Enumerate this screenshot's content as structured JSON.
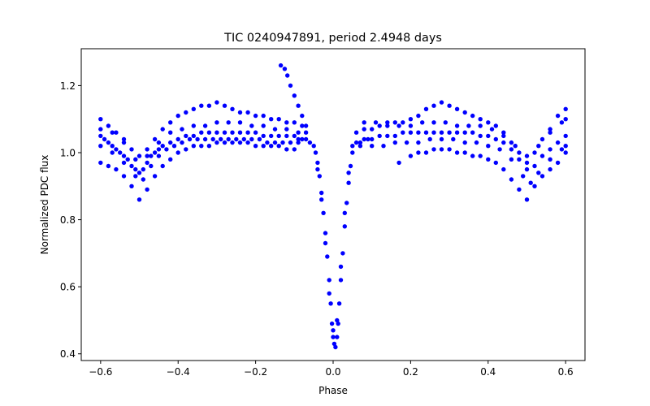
{
  "chart_data": {
    "type": "scatter",
    "title": "TIC 0240947891, period 2.4948 days",
    "xlabel": "Phase",
    "ylabel": "Normalized PDC flux",
    "xlim": [
      -0.65,
      0.65
    ],
    "ylim": [
      0.38,
      1.31
    ],
    "xticks": [
      -0.6,
      -0.4,
      -0.2,
      0.0,
      0.2,
      0.4,
      0.6
    ],
    "xtick_labels": [
      "−0.6",
      "−0.4",
      "−0.2",
      "0.0",
      "0.2",
      "0.4",
      "0.6"
    ],
    "yticks": [
      0.4,
      0.6,
      0.8,
      1.0,
      1.2
    ],
    "ytick_labels": [
      "0.4",
      "0.6",
      "0.8",
      "1.0",
      "1.2"
    ],
    "grid": false,
    "legend": "none",
    "marker_color": "#0000ff",
    "series": [
      {
        "points": [
          [
            -0.6,
            1.05
          ],
          [
            -0.59,
            1.04
          ],
          [
            -0.58,
            1.03
          ],
          [
            -0.57,
            1.02
          ],
          [
            -0.56,
            1.01
          ],
          [
            -0.55,
            1.0
          ],
          [
            -0.54,
            0.99
          ],
          [
            -0.53,
            0.98
          ],
          [
            -0.52,
            0.96
          ],
          [
            -0.51,
            0.95
          ],
          [
            -0.5,
            0.94
          ],
          [
            -0.49,
            0.95
          ],
          [
            -0.48,
            0.97
          ],
          [
            -0.47,
            0.99
          ],
          [
            -0.46,
            1.0
          ],
          [
            -0.45,
            1.01
          ],
          [
            -0.44,
            1.02
          ],
          [
            -0.42,
            1.03
          ],
          [
            -0.4,
            1.04
          ],
          [
            -0.38,
            1.05
          ],
          [
            -0.36,
            1.05
          ],
          [
            -0.34,
            1.06
          ],
          [
            -0.32,
            1.06
          ],
          [
            -0.3,
            1.06
          ],
          [
            -0.28,
            1.06
          ],
          [
            -0.26,
            1.06
          ],
          [
            -0.24,
            1.06
          ],
          [
            -0.22,
            1.06
          ],
          [
            -0.2,
            1.06
          ],
          [
            -0.18,
            1.05
          ],
          [
            -0.16,
            1.05
          ],
          [
            -0.14,
            1.05
          ],
          [
            -0.12,
            1.05
          ],
          [
            -0.1,
            1.05
          ],
          [
            -0.09,
            1.04
          ],
          [
            -0.08,
            1.04
          ],
          [
            -0.07,
            1.04
          ],
          [
            -0.06,
            1.03
          ],
          [
            -0.05,
            1.02
          ],
          [
            -0.6,
            1.1
          ],
          [
            -0.58,
            1.08
          ],
          [
            -0.56,
            1.06
          ],
          [
            -0.54,
            1.04
          ],
          [
            -0.52,
            1.01
          ],
          [
            -0.5,
            0.99
          ],
          [
            -0.48,
            1.01
          ],
          [
            -0.46,
            1.04
          ],
          [
            -0.44,
            1.07
          ],
          [
            -0.42,
            1.09
          ],
          [
            -0.4,
            1.11
          ],
          [
            -0.38,
            1.12
          ],
          [
            -0.36,
            1.13
          ],
          [
            -0.34,
            1.14
          ],
          [
            -0.32,
            1.14
          ],
          [
            -0.3,
            1.15
          ],
          [
            -0.28,
            1.14
          ],
          [
            -0.26,
            1.13
          ],
          [
            -0.24,
            1.12
          ],
          [
            -0.22,
            1.12
          ],
          [
            -0.2,
            1.11
          ],
          [
            -0.18,
            1.11
          ],
          [
            -0.16,
            1.1
          ],
          [
            -0.14,
            1.1
          ],
          [
            -0.12,
            1.09
          ],
          [
            -0.1,
            1.09
          ],
          [
            -0.08,
            1.08
          ],
          [
            -0.6,
            0.97
          ],
          [
            -0.58,
            0.96
          ],
          [
            -0.56,
            0.95
          ],
          [
            -0.54,
            0.93
          ],
          [
            -0.52,
            0.9
          ],
          [
            -0.5,
            0.86
          ],
          [
            -0.48,
            0.89
          ],
          [
            -0.46,
            0.93
          ],
          [
            -0.44,
            0.96
          ],
          [
            -0.42,
            0.98
          ],
          [
            -0.4,
            1.0
          ],
          [
            -0.38,
            1.01
          ],
          [
            -0.36,
            1.02
          ],
          [
            -0.34,
            1.02
          ],
          [
            -0.32,
            1.02
          ],
          [
            -0.3,
            1.03
          ],
          [
            -0.28,
            1.03
          ],
          [
            -0.26,
            1.03
          ],
          [
            -0.24,
            1.03
          ],
          [
            -0.22,
            1.03
          ],
          [
            -0.2,
            1.02
          ],
          [
            -0.18,
            1.02
          ],
          [
            -0.16,
            1.02
          ],
          [
            -0.14,
            1.02
          ],
          [
            -0.12,
            1.01
          ],
          [
            -0.1,
            1.01
          ],
          [
            -0.6,
            1.02
          ],
          [
            -0.57,
            1.0
          ],
          [
            -0.54,
            0.97
          ],
          [
            -0.51,
            0.93
          ],
          [
            -0.49,
            0.92
          ],
          [
            -0.47,
            0.96
          ],
          [
            -0.45,
            0.99
          ],
          [
            -0.43,
            1.01
          ],
          [
            -0.41,
            1.02
          ],
          [
            -0.39,
            1.03
          ],
          [
            -0.37,
            1.04
          ],
          [
            -0.35,
            1.04
          ],
          [
            -0.33,
            1.04
          ],
          [
            -0.31,
            1.04
          ],
          [
            -0.29,
            1.04
          ],
          [
            -0.27,
            1.04
          ],
          [
            -0.25,
            1.04
          ],
          [
            -0.23,
            1.04
          ],
          [
            -0.21,
            1.04
          ],
          [
            -0.19,
            1.04
          ],
          [
            -0.17,
            1.03
          ],
          [
            -0.15,
            1.03
          ],
          [
            -0.13,
            1.03
          ],
          [
            -0.11,
            1.03
          ],
          [
            -0.09,
            1.03
          ],
          [
            -0.6,
            1.07
          ],
          [
            -0.57,
            1.06
          ],
          [
            -0.54,
            1.03
          ],
          [
            -0.51,
            0.98
          ],
          [
            -0.48,
            0.99
          ],
          [
            -0.45,
            1.03
          ],
          [
            -0.42,
            1.06
          ],
          [
            -0.39,
            1.07
          ],
          [
            -0.36,
            1.08
          ],
          [
            -0.33,
            1.08
          ],
          [
            -0.3,
            1.09
          ],
          [
            -0.27,
            1.09
          ],
          [
            -0.24,
            1.09
          ],
          [
            -0.21,
            1.08
          ],
          [
            -0.18,
            1.08
          ],
          [
            -0.15,
            1.07
          ],
          [
            -0.12,
            1.07
          ],
          [
            -0.09,
            1.06
          ],
          [
            -0.07,
            1.06
          ],
          [
            -0.135,
            1.26
          ],
          [
            -0.125,
            1.25
          ],
          [
            -0.118,
            1.23
          ],
          [
            -0.11,
            1.2
          ],
          [
            -0.1,
            1.17
          ],
          [
            -0.09,
            1.14
          ],
          [
            -0.08,
            1.11
          ],
          [
            -0.07,
            1.08
          ],
          [
            -0.045,
            1.0
          ],
          [
            -0.04,
            0.97
          ],
          [
            -0.035,
            0.93
          ],
          [
            -0.03,
            0.88
          ],
          [
            -0.025,
            0.82
          ],
          [
            -0.02,
            0.76
          ],
          [
            -0.015,
            0.69
          ],
          [
            -0.01,
            0.62
          ],
          [
            -0.006,
            0.55
          ],
          [
            -0.003,
            0.49
          ],
          [
            0.0,
            0.45
          ],
          [
            0.003,
            0.43
          ],
          [
            0.006,
            0.42
          ],
          [
            0.01,
            0.45
          ],
          [
            0.013,
            0.49
          ],
          [
            0.016,
            0.55
          ],
          [
            0.02,
            0.62
          ],
          [
            0.025,
            0.7
          ],
          [
            0.03,
            0.78
          ],
          [
            0.035,
            0.85
          ],
          [
            0.04,
            0.91
          ],
          [
            0.045,
            0.96
          ],
          [
            0.05,
            1.0
          ],
          [
            -0.04,
            0.95
          ],
          [
            -0.03,
            0.86
          ],
          [
            -0.02,
            0.73
          ],
          [
            -0.01,
            0.58
          ],
          [
            0.0,
            0.47
          ],
          [
            0.01,
            0.5
          ],
          [
            0.02,
            0.66
          ],
          [
            0.03,
            0.82
          ],
          [
            0.04,
            0.94
          ],
          [
            0.05,
            1.02
          ],
          [
            0.06,
            1.03
          ],
          [
            0.07,
            1.03
          ],
          [
            0.08,
            1.04
          ],
          [
            0.09,
            1.04
          ],
          [
            0.1,
            1.04
          ],
          [
            0.12,
            1.05
          ],
          [
            0.14,
            1.05
          ],
          [
            0.16,
            1.05
          ],
          [
            0.18,
            1.06
          ],
          [
            0.2,
            1.06
          ],
          [
            0.22,
            1.06
          ],
          [
            0.24,
            1.06
          ],
          [
            0.26,
            1.06
          ],
          [
            0.28,
            1.06
          ],
          [
            0.3,
            1.06
          ],
          [
            0.32,
            1.06
          ],
          [
            0.34,
            1.06
          ],
          [
            0.36,
            1.06
          ],
          [
            0.38,
            1.05
          ],
          [
            0.4,
            1.05
          ],
          [
            0.42,
            1.04
          ],
          [
            0.44,
            1.03
          ],
          [
            0.46,
            1.01
          ],
          [
            0.48,
            0.98
          ],
          [
            0.5,
            0.95
          ],
          [
            0.52,
            0.96
          ],
          [
            0.54,
            0.99
          ],
          [
            0.56,
            1.01
          ],
          [
            0.58,
            1.03
          ],
          [
            0.6,
            1.05
          ],
          [
            0.06,
            1.06
          ],
          [
            0.08,
            1.07
          ],
          [
            0.1,
            1.07
          ],
          [
            0.12,
            1.08
          ],
          [
            0.14,
            1.08
          ],
          [
            0.16,
            1.09
          ],
          [
            0.18,
            1.09
          ],
          [
            0.2,
            1.1
          ],
          [
            0.22,
            1.11
          ],
          [
            0.24,
            1.13
          ],
          [
            0.26,
            1.14
          ],
          [
            0.28,
            1.15
          ],
          [
            0.3,
            1.14
          ],
          [
            0.32,
            1.13
          ],
          [
            0.34,
            1.12
          ],
          [
            0.36,
            1.11
          ],
          [
            0.38,
            1.1
          ],
          [
            0.4,
            1.09
          ],
          [
            0.42,
            1.08
          ],
          [
            0.44,
            1.06
          ],
          [
            0.46,
            1.03
          ],
          [
            0.48,
            1.0
          ],
          [
            0.5,
            0.97
          ],
          [
            0.52,
            1.0
          ],
          [
            0.54,
            1.04
          ],
          [
            0.56,
            1.07
          ],
          [
            0.58,
            1.11
          ],
          [
            0.6,
            1.13
          ],
          [
            0.17,
            0.97
          ],
          [
            0.2,
            0.99
          ],
          [
            0.22,
            1.0
          ],
          [
            0.24,
            1.0
          ],
          [
            0.26,
            1.01
          ],
          [
            0.28,
            1.01
          ],
          [
            0.3,
            1.01
          ],
          [
            0.32,
            1.0
          ],
          [
            0.34,
            1.0
          ],
          [
            0.36,
            0.99
          ],
          [
            0.38,
            0.99
          ],
          [
            0.4,
            0.98
          ],
          [
            0.42,
            0.97
          ],
          [
            0.44,
            0.95
          ],
          [
            0.46,
            0.92
          ],
          [
            0.48,
            0.89
          ],
          [
            0.5,
            0.86
          ],
          [
            0.52,
            0.9
          ],
          [
            0.54,
            0.93
          ],
          [
            0.56,
            0.95
          ],
          [
            0.58,
            0.97
          ],
          [
            0.6,
            1.0
          ],
          [
            0.07,
            1.02
          ],
          [
            0.1,
            1.02
          ],
          [
            0.13,
            1.02
          ],
          [
            0.16,
            1.03
          ],
          [
            0.19,
            1.03
          ],
          [
            0.22,
            1.03
          ],
          [
            0.25,
            1.04
          ],
          [
            0.28,
            1.04
          ],
          [
            0.31,
            1.04
          ],
          [
            0.34,
            1.03
          ],
          [
            0.37,
            1.03
          ],
          [
            0.4,
            1.02
          ],
          [
            0.43,
            1.01
          ],
          [
            0.46,
            0.98
          ],
          [
            0.49,
            0.93
          ],
          [
            0.51,
            0.91
          ],
          [
            0.53,
            0.94
          ],
          [
            0.56,
            0.98
          ],
          [
            0.59,
            1.01
          ],
          [
            0.6,
            1.02
          ],
          [
            0.08,
            1.09
          ],
          [
            0.11,
            1.09
          ],
          [
            0.14,
            1.09
          ],
          [
            0.17,
            1.08
          ],
          [
            0.2,
            1.08
          ],
          [
            0.23,
            1.09
          ],
          [
            0.26,
            1.09
          ],
          [
            0.29,
            1.09
          ],
          [
            0.32,
            1.08
          ],
          [
            0.35,
            1.08
          ],
          [
            0.38,
            1.08
          ],
          [
            0.41,
            1.07
          ],
          [
            0.44,
            1.05
          ],
          [
            0.47,
            1.02
          ],
          [
            0.5,
            0.99
          ],
          [
            0.53,
            1.02
          ],
          [
            0.56,
            1.06
          ],
          [
            0.59,
            1.09
          ],
          [
            0.6,
            1.1
          ]
        ]
      }
    ]
  }
}
